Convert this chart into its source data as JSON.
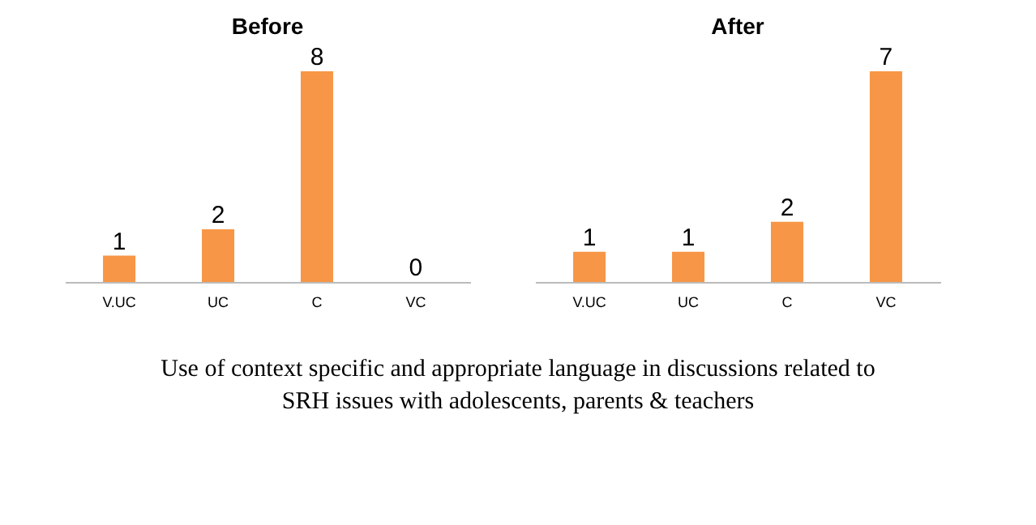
{
  "chart_data": [
    {
      "type": "bar",
      "title": "Before",
      "categories": [
        "V.UC",
        "UC",
        "C",
        "VC"
      ],
      "values": [
        1,
        2,
        8,
        0
      ],
      "color": "#f79646",
      "data_labels": true,
      "grid": false,
      "annotations": [
        "Use of context specific and appropriate language in discussions related to SRH issues with adolescents, parents & teachers"
      ]
    },
    {
      "type": "bar",
      "title": "After",
      "categories": [
        "V.UC",
        "UC",
        "C",
        "VC"
      ],
      "values": [
        1,
        1,
        2,
        7
      ],
      "color": "#f79646",
      "data_labels": true,
      "grid": false
    }
  ]
}
